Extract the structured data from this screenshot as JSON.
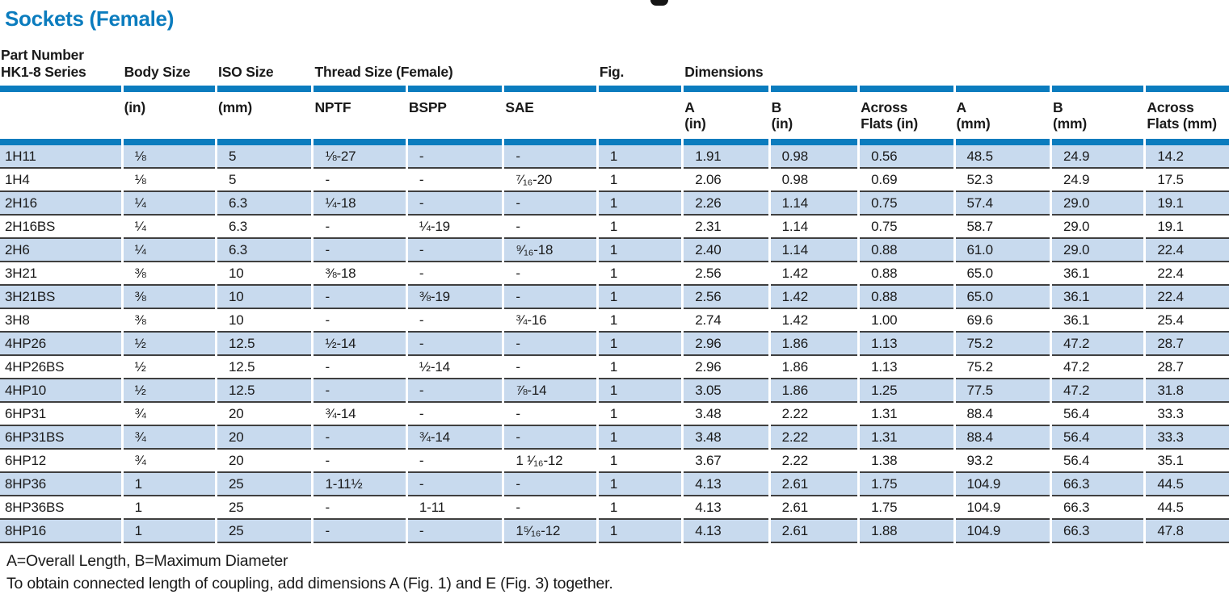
{
  "page": {
    "title": "Sockets (Female)",
    "accent_color": "#0b7cbe",
    "stripe_color": "#c8daee"
  },
  "table": {
    "top_headers": {
      "part_number": "Part Number\nHK1-8 Series",
      "body_size": "Body Size",
      "iso_size": "ISO Size",
      "thread_size": "Thread Size (Female)",
      "fig": "Fig.",
      "dimensions": "Dimensions"
    },
    "sub_headers": {
      "body_size_unit": "(in)",
      "iso_size_unit": "(mm)",
      "nptf": "NPTF",
      "bspp": "BSPP",
      "sae": "SAE",
      "a_in": "A\n(in)",
      "b_in": "B\n(in)",
      "across_flats_in": "Across\nFlats (in)",
      "a_mm": "A\n(mm)",
      "b_mm": "B\n(mm)",
      "across_flats_mm": "Across\nFlats (mm)"
    },
    "rows": [
      [
        "1H11",
        "⅛",
        "5",
        "⅛-27",
        "-",
        "-",
        "1",
        "1.91",
        "0.98",
        "0.56",
        "48.5",
        "24.9",
        "14.2"
      ],
      [
        "1H4",
        "⅛",
        "5",
        "-",
        "-",
        "⁷⁄₁₆-20",
        "1",
        "2.06",
        "0.98",
        "0.69",
        "52.3",
        "24.9",
        "17.5"
      ],
      [
        "2H16",
        "¼",
        "6.3",
        "¼-18",
        "-",
        "-",
        "1",
        "2.26",
        "1.14",
        "0.75",
        "57.4",
        "29.0",
        "19.1"
      ],
      [
        "2H16BS",
        "¼",
        "6.3",
        "-",
        "¼-19",
        "-",
        "1",
        "2.31",
        "1.14",
        "0.75",
        "58.7",
        "29.0",
        "19.1"
      ],
      [
        "2H6",
        "¼",
        "6.3",
        "-",
        "-",
        "⁹⁄₁₆-18",
        "1",
        "2.40",
        "1.14",
        "0.88",
        "61.0",
        "29.0",
        "22.4"
      ],
      [
        "3H21",
        "⅜",
        "10",
        "⅜-18",
        "-",
        "-",
        "1",
        "2.56",
        "1.42",
        "0.88",
        "65.0",
        "36.1",
        "22.4"
      ],
      [
        "3H21BS",
        "⅜",
        "10",
        "-",
        "⅜-19",
        "-",
        "1",
        "2.56",
        "1.42",
        "0.88",
        "65.0",
        "36.1",
        "22.4"
      ],
      [
        "3H8",
        "⅜",
        "10",
        "-",
        "-",
        "¾-16",
        "1",
        "2.74",
        "1.42",
        "1.00",
        "69.6",
        "36.1",
        "25.4"
      ],
      [
        "4HP26",
        "½",
        "12.5",
        "½-14",
        "-",
        "-",
        "1",
        "2.96",
        "1.86",
        "1.13",
        "75.2",
        "47.2",
        "28.7"
      ],
      [
        "4HP26BS",
        "½",
        "12.5",
        "-",
        "½-14",
        "-",
        "1",
        "2.96",
        "1.86",
        "1.13",
        "75.2",
        "47.2",
        "28.7"
      ],
      [
        "4HP10",
        "½",
        "12.5",
        "-",
        "-",
        "⅞-14",
        "1",
        "3.05",
        "1.86",
        "1.25",
        "77.5",
        "47.2",
        "31.8"
      ],
      [
        "6HP31",
        "¾",
        "20",
        "¾-14",
        "-",
        "-",
        "1",
        "3.48",
        "2.22",
        "1.31",
        "88.4",
        "56.4",
        "33.3"
      ],
      [
        "6HP31BS",
        "¾",
        "20",
        "-",
        "¾-14",
        "-",
        "1",
        "3.48",
        "2.22",
        "1.31",
        "88.4",
        "56.4",
        "33.3"
      ],
      [
        "6HP12",
        "¾",
        "20",
        "-",
        "-",
        "1 ¹⁄₁₆-12",
        "1",
        "3.67",
        "2.22",
        "1.38",
        "93.2",
        "56.4",
        "35.1"
      ],
      [
        "8HP36",
        "1",
        "25",
        "1-11½",
        "-",
        "-",
        "1",
        "4.13",
        "2.61",
        "1.75",
        "104.9",
        "66.3",
        "44.5"
      ],
      [
        "8HP36BS",
        "1",
        "25",
        "-",
        "1-11",
        "-",
        "1",
        "4.13",
        "2.61",
        "1.75",
        "104.9",
        "66.3",
        "44.5"
      ],
      [
        "8HP16",
        "1",
        "25",
        "-",
        "-",
        "1⁵⁄₁₆-12",
        "1",
        "4.13",
        "2.61",
        "1.88",
        "104.9",
        "66.3",
        "47.8"
      ]
    ]
  },
  "footer": {
    "line1": "A=Overall Length, B=Maximum Diameter",
    "line2": "To obtain connected length of coupling, add dimensions A (Fig. 1) and E (Fig. 3) together."
  }
}
